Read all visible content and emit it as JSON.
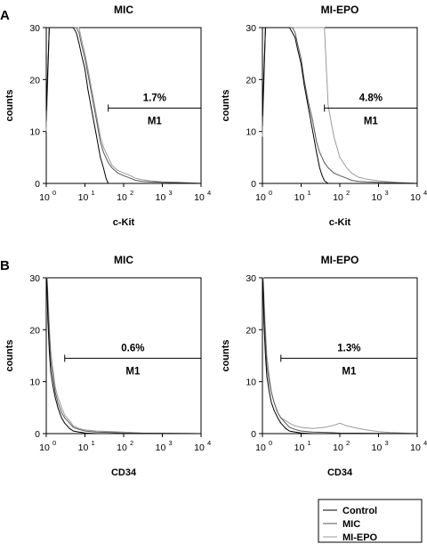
{
  "chart_data": [
    {
      "type": "line",
      "panel": "A",
      "title": "MIC",
      "xlabel": "c-Kit",
      "ylabel": "counts",
      "xscale": "log",
      "xlim": [
        1,
        10000
      ],
      "ylim": [
        0,
        30
      ],
      "xticks": [
        "10",
        "10",
        "10",
        "10",
        "10"
      ],
      "xtick_exps": [
        "0",
        "1",
        "2",
        "3",
        "4"
      ],
      "yticks": [
        "0",
        "10",
        "20",
        "30"
      ],
      "gate": {
        "label": "M1",
        "percent": "1.7%",
        "from": 40,
        "to": 10000,
        "y": 14.5
      },
      "series": [
        {
          "name": "Control",
          "x": [
            1.0,
            1.2,
            1.5,
            2.0,
            3.0,
            4.0,
            5.0,
            6.0,
            7.0,
            8.0,
            10.0,
            12.0,
            15.0,
            20.0,
            25.0,
            30.0,
            35.0,
            40.0,
            50.0,
            100.0,
            10000.0
          ],
          "y": [
            14,
            30,
            30,
            30,
            30,
            30,
            30,
            29,
            27,
            25,
            22,
            18,
            14,
            9,
            5,
            3,
            1,
            0,
            0,
            0,
            0
          ]
        },
        {
          "name": "MIC",
          "x": [
            1.0,
            1.2,
            1.5,
            2.0,
            3.0,
            4.0,
            5.0,
            6.0,
            7.0,
            8.0,
            10.0,
            12.0,
            15.0,
            20.0,
            25.0,
            30.0,
            40.0,
            50.0,
            70.0,
            100.0,
            150.0,
            200.0,
            300.0,
            500.0,
            1000.0,
            3000.0,
            10000.0
          ],
          "y": [
            12,
            30,
            30,
            30,
            30,
            30,
            30,
            30,
            29,
            27,
            24,
            21,
            17,
            12,
            8,
            6,
            4,
            3,
            2,
            1.5,
            1,
            0.6,
            0.4,
            0.3,
            0.2,
            0.1,
            0
          ]
        },
        {
          "name": "MI-EPO",
          "x": [
            1.0,
            1.2,
            1.5,
            2.0,
            3.0,
            4.0,
            5.0,
            6.0,
            7.0,
            8.0,
            10.0,
            12.0,
            15.0,
            20.0,
            25.0,
            30.0,
            40.0,
            50.0,
            70.0,
            100.0,
            150.0,
            200.0,
            300.0,
            500.0,
            1000.0,
            3000.0,
            10000.0
          ],
          "y": [
            10,
            30,
            30,
            30,
            30,
            30,
            30,
            30,
            30,
            28,
            25,
            22,
            18,
            13,
            9,
            7,
            5,
            3.5,
            2.5,
            2,
            1.5,
            1,
            0.7,
            0.5,
            0.3,
            0.2,
            0
          ]
        }
      ]
    },
    {
      "type": "line",
      "panel": "",
      "title": "MI-EPO",
      "xlabel": "c-Kit",
      "ylabel": "counts",
      "xscale": "log",
      "xlim": [
        1,
        10000
      ],
      "ylim": [
        0,
        30
      ],
      "xticks": [
        "10",
        "10",
        "10",
        "10",
        "10"
      ],
      "xtick_exps": [
        "0",
        "1",
        "2",
        "3",
        "4"
      ],
      "yticks": [
        "0",
        "10",
        "20",
        "30"
      ],
      "gate": {
        "label": "M1",
        "percent": "4.8%",
        "from": 40,
        "to": 10000,
        "y": 14.5
      },
      "series": [
        {
          "name": "Control",
          "x": [
            1.0,
            1.2,
            1.5,
            2.0,
            3.0,
            4.0,
            5.0,
            6.0,
            7.0,
            8.0,
            10.0,
            12.0,
            15.0,
            20.0,
            25.0,
            30.0,
            35.0,
            40.0,
            50.0,
            100.0,
            10000.0
          ],
          "y": [
            13,
            30,
            30,
            30,
            30,
            30,
            30,
            29,
            28,
            26,
            23,
            19,
            15,
            10,
            6,
            3,
            1.5,
            0.5,
            0,
            0,
            0
          ]
        },
        {
          "name": "MIC",
          "x": [
            1.0,
            1.2,
            1.5,
            2.0,
            3.0,
            4.0,
            5.0,
            6.0,
            7.0,
            8.0,
            10.0,
            12.0,
            15.0,
            20.0,
            25.0,
            30.0,
            40.0,
            50.0,
            70.0,
            100.0,
            150.0,
            200.0,
            300.0,
            500.0,
            1000.0,
            3000.0,
            10000.0
          ],
          "y": [
            11,
            30,
            30,
            30,
            30,
            30,
            30,
            30,
            29,
            27,
            24,
            20,
            16,
            12,
            8,
            6,
            4,
            3,
            2,
            1.5,
            1,
            0.6,
            0.4,
            0.3,
            0.2,
            0.1,
            0
          ]
        },
        {
          "name": "MI-EPO",
          "x": [
            1.0,
            1.2,
            1.5,
            2.0,
            3.0,
            4.0,
            5.0,
            6.0,
            7.0,
            8.0,
            10.0,
            12.0,
            15.0,
            20.0,
            25.0,
            30.0,
            40.0,
            45.0,
            50.0,
            70.0,
            100.0,
            150.0,
            200.0,
            300.0,
            500.0,
            1000.0,
            3000.0,
            10000.0
          ],
          "y": [
            9,
            30,
            30,
            30,
            30,
            30,
            30,
            30,
            30,
            30,
            30,
            30,
            30,
            30,
            30,
            30,
            30,
            22,
            15,
            9,
            5,
            3,
            2,
            1.2,
            0.8,
            0.5,
            0.2,
            0
          ]
        }
      ]
    },
    {
      "type": "line",
      "panel": "B",
      "title": "MIC",
      "xlabel": "CD34",
      "ylabel": "counts",
      "xscale": "log",
      "xlim": [
        1,
        10000
      ],
      "ylim": [
        0,
        30
      ],
      "xticks": [
        "10",
        "10",
        "10",
        "10",
        "10"
      ],
      "xtick_exps": [
        "0",
        "1",
        "2",
        "3",
        "4"
      ],
      "yticks": [
        "0",
        "10",
        "20",
        "30"
      ],
      "gate": {
        "label": "M1",
        "percent": "0.6%",
        "from": 3,
        "to": 10000,
        "y": 14.5
      },
      "series": [
        {
          "name": "Control",
          "x": [
            1.0,
            1.05,
            1.1,
            1.2,
            1.3,
            1.5,
            1.7,
            2.0,
            2.5,
            3.0,
            4.0,
            5.0,
            7.0,
            10.0,
            20.0,
            10000.0
          ],
          "y": [
            30,
            28,
            22,
            16,
            12,
            9,
            7,
            5,
            3,
            2,
            1,
            0.5,
            0.3,
            0.1,
            0,
            0
          ]
        },
        {
          "name": "MIC",
          "x": [
            1.0,
            1.05,
            1.1,
            1.2,
            1.3,
            1.5,
            1.7,
            2.0,
            2.5,
            3.0,
            4.0,
            5.0,
            7.0,
            10.0,
            20.0,
            50.0,
            100.0,
            10000.0
          ],
          "y": [
            30,
            30,
            25,
            19,
            14,
            11,
            8,
            6,
            4,
            3,
            2,
            1.2,
            0.8,
            0.5,
            0.3,
            0.2,
            0.1,
            0
          ]
        },
        {
          "name": "MI-EPO",
          "x": [
            1.0,
            1.05,
            1.1,
            1.2,
            1.3,
            1.5,
            1.7,
            2.0,
            2.5,
            3.0,
            4.0,
            5.0,
            7.0,
            10.0,
            20.0,
            50.0,
            100.0,
            300.0,
            10000.0
          ],
          "y": [
            30,
            30,
            27,
            21,
            16,
            12,
            9,
            7,
            5,
            3.5,
            2.5,
            1.5,
            1,
            0.7,
            0.5,
            0.4,
            0.3,
            0.1,
            0
          ]
        }
      ]
    },
    {
      "type": "line",
      "panel": "",
      "title": "MI-EPO",
      "xlabel": "CD34",
      "ylabel": "counts",
      "xscale": "log",
      "xlim": [
        1,
        10000
      ],
      "ylim": [
        0,
        30
      ],
      "xticks": [
        "10",
        "10",
        "10",
        "10",
        "10"
      ],
      "xtick_exps": [
        "0",
        "1",
        "2",
        "3",
        "4"
      ],
      "yticks": [
        "0",
        "10",
        "20",
        "30"
      ],
      "gate": {
        "label": "M1",
        "percent": "1.3%",
        "from": 3,
        "to": 10000,
        "y": 14.5
      },
      "series": [
        {
          "name": "Control",
          "x": [
            1.0,
            1.05,
            1.1,
            1.2,
            1.3,
            1.5,
            1.7,
            2.0,
            2.5,
            3.0,
            4.0,
            5.0,
            7.0,
            10.0,
            20.0,
            10000.0
          ],
          "y": [
            30,
            27,
            21,
            15,
            11,
            8,
            6,
            4.5,
            3,
            2,
            1,
            0.5,
            0.3,
            0.1,
            0,
            0
          ]
        },
        {
          "name": "MIC",
          "x": [
            1.0,
            1.05,
            1.1,
            1.2,
            1.3,
            1.5,
            1.7,
            2.0,
            2.5,
            3.0,
            4.0,
            5.0,
            7.0,
            10.0,
            20.0,
            50.0,
            100.0,
            10000.0
          ],
          "y": [
            30,
            29,
            24,
            18,
            13,
            10,
            8,
            6,
            4,
            3,
            2,
            1.2,
            0.8,
            0.5,
            0.3,
            0.2,
            0.1,
            0
          ]
        },
        {
          "name": "MI-EPO",
          "x": [
            1.0,
            1.05,
            1.1,
            1.2,
            1.3,
            1.5,
            1.7,
            2.0,
            2.5,
            3.0,
            4.0,
            5.0,
            7.0,
            10.0,
            20.0,
            40.0,
            70.0,
            100.0,
            150.0,
            300.0,
            600.0,
            1000.0,
            2000.0,
            10000.0
          ],
          "y": [
            30,
            30,
            26,
            20,
            15,
            11,
            8,
            6,
            4,
            3,
            2.5,
            2,
            1.5,
            1.2,
            1,
            1.2,
            1.6,
            2,
            1.5,
            1,
            0.6,
            0.4,
            0.2,
            0
          ]
        }
      ]
    }
  ],
  "legend": {
    "position": "bottom-right",
    "entries": [
      {
        "label": "Control",
        "color": "#000000"
      },
      {
        "label": "MIC",
        "color": "#555555"
      },
      {
        "label": "MI-EPO",
        "color": "#9a9a9a"
      }
    ]
  }
}
